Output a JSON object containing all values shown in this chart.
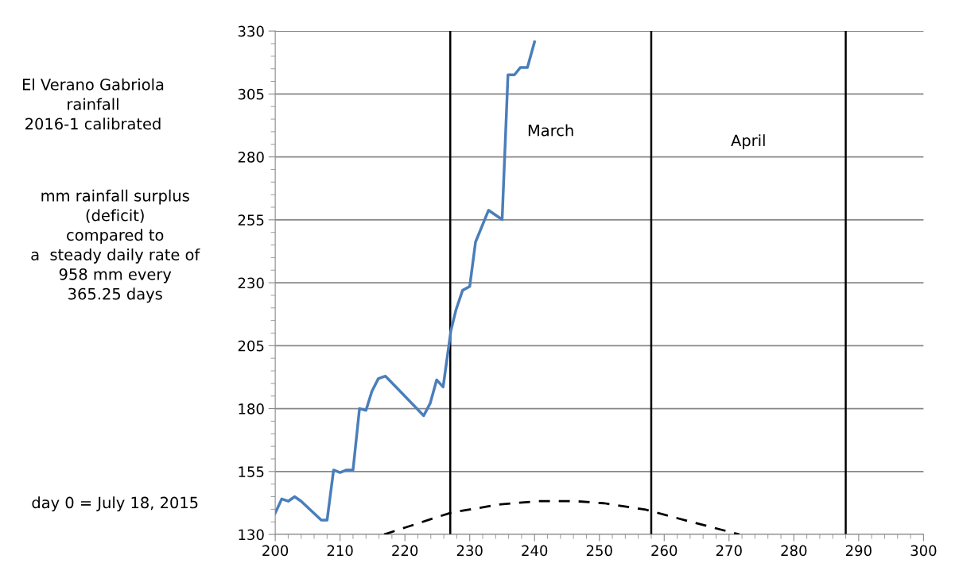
{
  "chart_data": {
    "type": "line",
    "title": "El Verano Gabriola\nrainfall\n2016-1 calibrated",
    "annotations": [
      "mm rainfall surplus\n(deficit)\ncompared to\na  steady daily rate of\n958 mm every\n365.25 days",
      "day 0 = July 18, 2015",
      "March",
      "April"
    ],
    "series": [
      {
        "color": "#4a7ebb",
        "line_style": "solid",
        "x": [
          200,
          201,
          202,
          203,
          204,
          207.1,
          208,
          209,
          210,
          211,
          212,
          213,
          214,
          214.9,
          215.9,
          217,
          222.9,
          223.9,
          224.9,
          225.9,
          227.1,
          227.9,
          228.9,
          230,
          230.9,
          232.9,
          235,
          235.9,
          236.9,
          237.8,
          238.9,
          240
        ],
        "values": [
          138.5,
          144.1,
          143.2,
          145,
          143.2,
          135.7,
          135.7,
          155.6,
          154.6,
          155.6,
          155.6,
          180,
          179.3,
          186.8,
          191.9,
          192.9,
          177.2,
          182.1,
          191.4,
          188.6,
          211,
          219.4,
          227,
          228.5,
          246.2,
          258.8,
          255.1,
          312.6,
          312.6,
          315.5,
          315.5,
          325.7
        ]
      },
      {
        "color": "#000000",
        "line_style": "dashed",
        "x": [
          216.8,
          224.4,
          227.2,
          234.8,
          240.5,
          246.3,
          250.7,
          257.2,
          263.7,
          271.6
        ],
        "values": [
          130,
          136.4,
          138.7,
          142,
          143.2,
          143.2,
          142.4,
          139.8,
          135.3,
          130
        ]
      }
    ],
    "ref_lines": [
      {
        "axis": "x",
        "value": 227,
        "color": "#000000"
      },
      {
        "axis": "x",
        "value": 258,
        "color": "#000000"
      },
      {
        "axis": "x",
        "value": 288,
        "color": "#000000"
      }
    ],
    "xlim": [
      200,
      300
    ],
    "xticks": [
      200,
      210,
      220,
      230,
      240,
      250,
      260,
      270,
      280,
      290,
      300
    ],
    "ylim": [
      130,
      330
    ],
    "yticks": [
      130,
      155,
      180,
      205,
      230,
      255,
      280,
      305,
      330
    ],
    "grid": "y",
    "legend": false,
    "marker": "none"
  }
}
